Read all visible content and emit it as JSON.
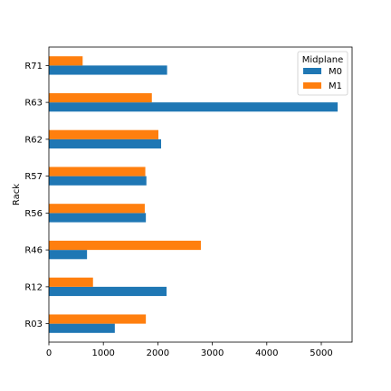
{
  "chart_data": {
    "type": "bar",
    "orientation": "horizontal",
    "title": "",
    "xlabel": "",
    "ylabel": "Rack",
    "categories": [
      "R03",
      "R12",
      "R46",
      "R56",
      "R57",
      "R62",
      "R63",
      "R71"
    ],
    "series": [
      {
        "name": "M0",
        "color": "#1f77b4",
        "values": [
          1210,
          2160,
          700,
          1780,
          1790,
          2060,
          5300,
          2170
        ]
      },
      {
        "name": "M1",
        "color": "#ff7f0e",
        "values": [
          1780,
          810,
          2790,
          1760,
          1770,
          2010,
          1890,
          620
        ]
      }
    ],
    "xlim": [
      0,
      5565
    ],
    "xticks": [
      0,
      1000,
      2000,
      3000,
      4000,
      5000
    ],
    "grid": false,
    "legend": {
      "title": "Midplane",
      "position": "top-right"
    }
  }
}
